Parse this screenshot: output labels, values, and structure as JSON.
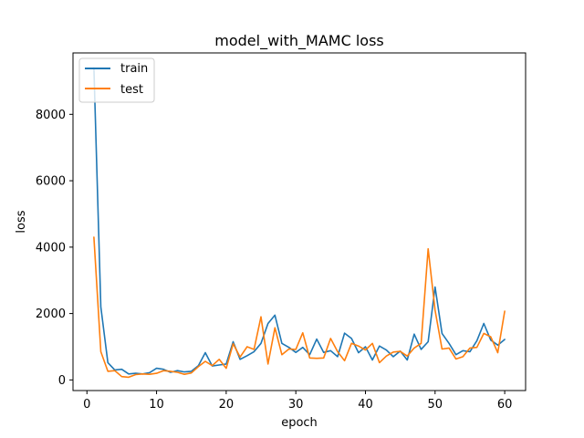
{
  "chart_data": {
    "type": "line",
    "title": "model_with_MAMC loss",
    "xlabel": "epoch",
    "ylabel": "loss",
    "xlim": [
      -2,
      63
    ],
    "ylim": [
      -320,
      9850
    ],
    "x_ticks": [
      0,
      10,
      20,
      30,
      40,
      50,
      60
    ],
    "y_ticks": [
      0,
      2000,
      4000,
      6000,
      8000
    ],
    "grid": false,
    "legend_position": "upper-left",
    "x": [
      1,
      2,
      3,
      4,
      5,
      6,
      7,
      8,
      9,
      10,
      11,
      12,
      13,
      14,
      15,
      16,
      17,
      18,
      19,
      20,
      21,
      22,
      23,
      24,
      25,
      26,
      27,
      28,
      29,
      30,
      31,
      32,
      33,
      34,
      35,
      36,
      37,
      38,
      39,
      40,
      41,
      42,
      43,
      44,
      45,
      46,
      47,
      48,
      49,
      50,
      51,
      52,
      53,
      54,
      55,
      56,
      57,
      58,
      59,
      60
    ],
    "series": [
      {
        "name": "train",
        "color": "#1f77b4",
        "values": [
          9400,
          2200,
          520,
          300,
          320,
          180,
          200,
          180,
          220,
          350,
          320,
          230,
          280,
          240,
          260,
          430,
          820,
          420,
          450,
          480,
          1150,
          620,
          730,
          850,
          1100,
          1700,
          1950,
          1100,
          980,
          830,
          980,
          760,
          1230,
          830,
          880,
          700,
          1410,
          1250,
          820,
          1000,
          600,
          1020,
          900,
          700,
          870,
          600,
          1380,
          920,
          1150,
          2800,
          1400,
          1100,
          760,
          880,
          850,
          1180,
          1700,
          1200,
          1050,
          1220
        ]
      },
      {
        "name": "test",
        "color": "#ff7f0e",
        "values": [
          4300,
          850,
          260,
          280,
          100,
          80,
          160,
          180,
          170,
          200,
          280,
          260,
          230,
          170,
          210,
          400,
          560,
          430,
          620,
          350,
          1090,
          690,
          1000,
          920,
          1900,
          480,
          1570,
          760,
          930,
          920,
          1420,
          660,
          650,
          660,
          1250,
          850,
          580,
          1100,
          1020,
          900,
          1100,
          520,
          720,
          840,
          860,
          720,
          960,
          1100,
          3950,
          2100,
          930,
          960,
          630,
          700,
          960,
          980,
          1400,
          1300,
          820,
          2070
        ]
      }
    ]
  }
}
